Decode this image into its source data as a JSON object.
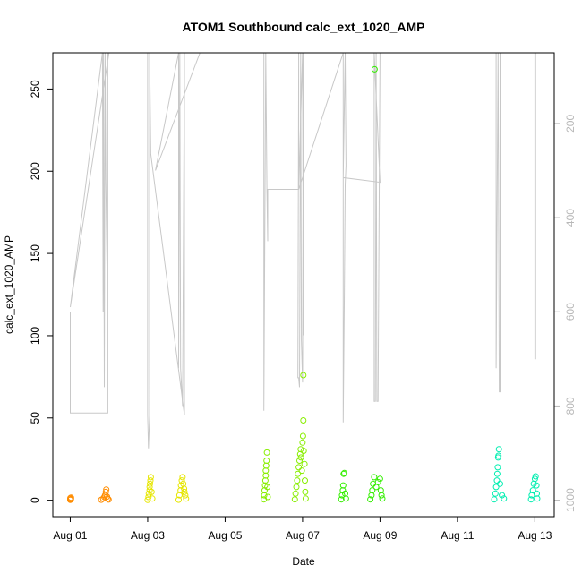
{
  "chart_data": {
    "type": "scatter",
    "title": "ATOM1 Southbound calc_ext_1020_AMP",
    "xlabel": "Date",
    "ylabel": "calc_ext_1020_AMP",
    "x_ticks": [
      "Aug 01",
      "Aug 03",
      "Aug 05",
      "Aug 07",
      "Aug 09",
      "Aug 11",
      "Aug 13"
    ],
    "x_tick_days": [
      1,
      3,
      5,
      7,
      9,
      11,
      13
    ],
    "xlim_days": [
      0.55,
      13.5
    ],
    "y_ticks": [
      0,
      50,
      100,
      150,
      200,
      250
    ],
    "ylim": [
      -10,
      272
    ],
    "y2_ticks": [
      200,
      400,
      600,
      800,
      1000
    ],
    "y2lim_inverted": [
      1035,
      50
    ],
    "legend": "none",
    "series": [
      {
        "color": "#FF8C00",
        "points": [
          [
            1.0,
            0.5
          ],
          [
            1.0,
            1.2
          ],
          [
            1.0,
            0.2
          ],
          [
            1.02,
            1.6
          ],
          [
            1.02,
            0.8
          ],
          [
            1.8,
            0.3
          ],
          [
            1.85,
            1.0
          ],
          [
            1.88,
            2.0
          ],
          [
            1.9,
            3.0
          ],
          [
            1.92,
            5.0
          ],
          [
            1.93,
            6.5
          ],
          [
            1.95,
            2.2
          ],
          [
            1.97,
            1.0
          ],
          [
            1.99,
            0.4
          ]
        ]
      },
      {
        "color": "#E6E600",
        "points": [
          [
            3.0,
            0.2
          ],
          [
            3.02,
            2.0
          ],
          [
            3.03,
            4.0
          ],
          [
            3.05,
            6.0
          ],
          [
            3.05,
            8.0
          ],
          [
            3.06,
            10.0
          ],
          [
            3.07,
            12.0
          ],
          [
            3.08,
            14.0
          ],
          [
            3.1,
            5.0
          ],
          [
            3.12,
            1.0
          ],
          [
            3.8,
            0.3
          ],
          [
            3.82,
            3.0
          ],
          [
            3.85,
            6.0
          ],
          [
            3.86,
            9.0
          ],
          [
            3.88,
            12.0
          ],
          [
            3.9,
            14.0
          ],
          [
            3.92,
            10.0
          ],
          [
            3.94,
            7.0
          ],
          [
            3.95,
            5.0
          ],
          [
            3.97,
            3.0
          ],
          [
            3.99,
            1.0
          ]
        ]
      },
      {
        "color": "#88EE00",
        "points": [
          [
            6.0,
            0.5
          ],
          [
            6.01,
            3.0
          ],
          [
            6.02,
            6.0
          ],
          [
            6.03,
            9.0
          ],
          [
            6.04,
            12.0
          ],
          [
            6.05,
            15.0
          ],
          [
            6.05,
            18.0
          ],
          [
            6.06,
            21.0
          ],
          [
            6.07,
            24.0
          ],
          [
            6.08,
            29.0
          ],
          [
            6.09,
            8.0
          ],
          [
            6.1,
            2.0
          ],
          [
            6.8,
            0.5
          ],
          [
            6.82,
            4.0
          ],
          [
            6.84,
            8.0
          ],
          [
            6.86,
            12.0
          ],
          [
            6.88,
            16.0
          ],
          [
            6.9,
            20.0
          ],
          [
            6.92,
            24.0
          ],
          [
            6.94,
            28.0
          ],
          [
            6.95,
            31.0
          ],
          [
            6.96,
            26.0
          ],
          [
            6.98,
            18.0
          ],
          [
            7.0,
            35.0
          ],
          [
            7.01,
            39.0
          ],
          [
            7.02,
            48.5
          ],
          [
            7.02,
            76.0
          ],
          [
            7.03,
            30.0
          ],
          [
            7.05,
            22.0
          ],
          [
            7.06,
            12.0
          ],
          [
            7.07,
            5.0
          ],
          [
            7.08,
            1.0
          ]
        ]
      },
      {
        "color": "#33EE00",
        "points": [
          [
            8.0,
            0.5
          ],
          [
            8.02,
            3.0
          ],
          [
            8.04,
            6.0
          ],
          [
            8.05,
            9.0
          ],
          [
            8.06,
            16.0
          ],
          [
            8.08,
            16.5
          ],
          [
            8.1,
            4.0
          ],
          [
            8.12,
            1.0
          ],
          [
            8.75,
            0.5
          ],
          [
            8.78,
            3.0
          ],
          [
            8.8,
            6.0
          ],
          [
            8.82,
            10.0
          ],
          [
            8.85,
            14.0
          ],
          [
            8.86,
            262.0
          ],
          [
            8.9,
            8.0
          ],
          [
            8.95,
            11.0
          ],
          [
            9.0,
            13.0
          ],
          [
            9.02,
            6.0
          ],
          [
            9.04,
            3.0
          ],
          [
            9.06,
            1.0
          ]
        ]
      },
      {
        "color": "#00EEB0",
        "points": [
          [
            11.95,
            0.5
          ],
          [
            11.98,
            4.0
          ],
          [
            12.0,
            8.0
          ],
          [
            12.02,
            12.0
          ],
          [
            12.03,
            16.0
          ],
          [
            12.04,
            20.0
          ],
          [
            12.05,
            26.0
          ],
          [
            12.06,
            27.0
          ],
          [
            12.07,
            31.0
          ],
          [
            12.1,
            10.0
          ],
          [
            12.15,
            3.0
          ],
          [
            12.2,
            1.0
          ],
          [
            12.9,
            0.5
          ],
          [
            12.92,
            3.0
          ],
          [
            12.95,
            6.0
          ],
          [
            12.97,
            10.0
          ],
          [
            13.0,
            13.0
          ],
          [
            13.02,
            14.5
          ],
          [
            13.04,
            9.0
          ],
          [
            13.05,
            4.0
          ],
          [
            13.06,
            1.0
          ]
        ]
      }
    ],
    "grey_line": {
      "color": "#c8c8c8",
      "axis": "right",
      "points": [
        [
          1.0,
          600
        ],
        [
          1.0,
          815
        ],
        [
          1.97,
          815
        ],
        [
          1.97,
          30
        ],
        [
          1.97,
          630
        ],
        [
          1.92,
          320
        ],
        [
          1.9,
          30
        ],
        [
          1.88,
          760
        ],
        [
          1.86,
          30
        ],
        [
          1.85,
          600
        ],
        [
          1.83,
          30
        ],
        [
          1.0,
          590
        ],
        [
          2.0,
          30
        ],
        [
          3.0,
          30
        ],
        [
          3.0,
          820
        ],
        [
          3.02,
          890
        ],
        [
          3.05,
          820
        ],
        [
          3.05,
          20
        ],
        [
          3.08,
          265
        ],
        [
          3.95,
          820
        ],
        [
          3.95,
          20
        ],
        [
          3.9,
          800
        ],
        [
          3.85,
          720
        ],
        [
          3.83,
          20
        ],
        [
          3.8,
          720
        ],
        [
          3.8,
          20
        ],
        [
          3.2,
          300
        ],
        [
          4.35,
          30
        ],
        [
          6.0,
          30
        ],
        [
          6.0,
          810
        ],
        [
          6.05,
          30
        ],
        [
          6.08,
          340
        ],
        [
          6.1,
          450
        ],
        [
          6.1,
          340
        ],
        [
          6.9,
          340
        ],
        [
          6.9,
          30
        ],
        [
          6.88,
          740
        ],
        [
          6.9,
          740
        ],
        [
          6.92,
          760
        ],
        [
          6.95,
          30
        ],
        [
          6.97,
          660
        ],
        [
          7.0,
          750
        ],
        [
          7.02,
          30
        ],
        [
          7.02,
          650
        ],
        [
          7.0,
          30
        ],
        [
          6.9,
          340
        ],
        [
          8.05,
          30
        ],
        [
          8.05,
          835
        ],
        [
          8.08,
          560
        ],
        [
          8.1,
          330
        ],
        [
          8.12,
          290
        ],
        [
          8.1,
          30
        ],
        [
          8.05,
          315
        ],
        [
          9.0,
          325
        ],
        [
          8.85,
          30
        ],
        [
          8.85,
          790
        ],
        [
          8.88,
          790
        ],
        [
          8.9,
          30
        ],
        [
          8.92,
          790
        ],
        [
          8.95,
          790
        ],
        [
          9.0,
          30
        ],
        [
          12.0,
          30
        ],
        [
          12.0,
          720
        ],
        [
          12.05,
          30
        ],
        [
          12.08,
          770
        ],
        [
          12.1,
          770
        ],
        [
          12.1,
          30
        ],
        [
          13.0,
          30
        ],
        [
          13.0,
          700
        ],
        [
          13.02,
          700
        ],
        [
          13.02,
          30
        ]
      ]
    }
  }
}
